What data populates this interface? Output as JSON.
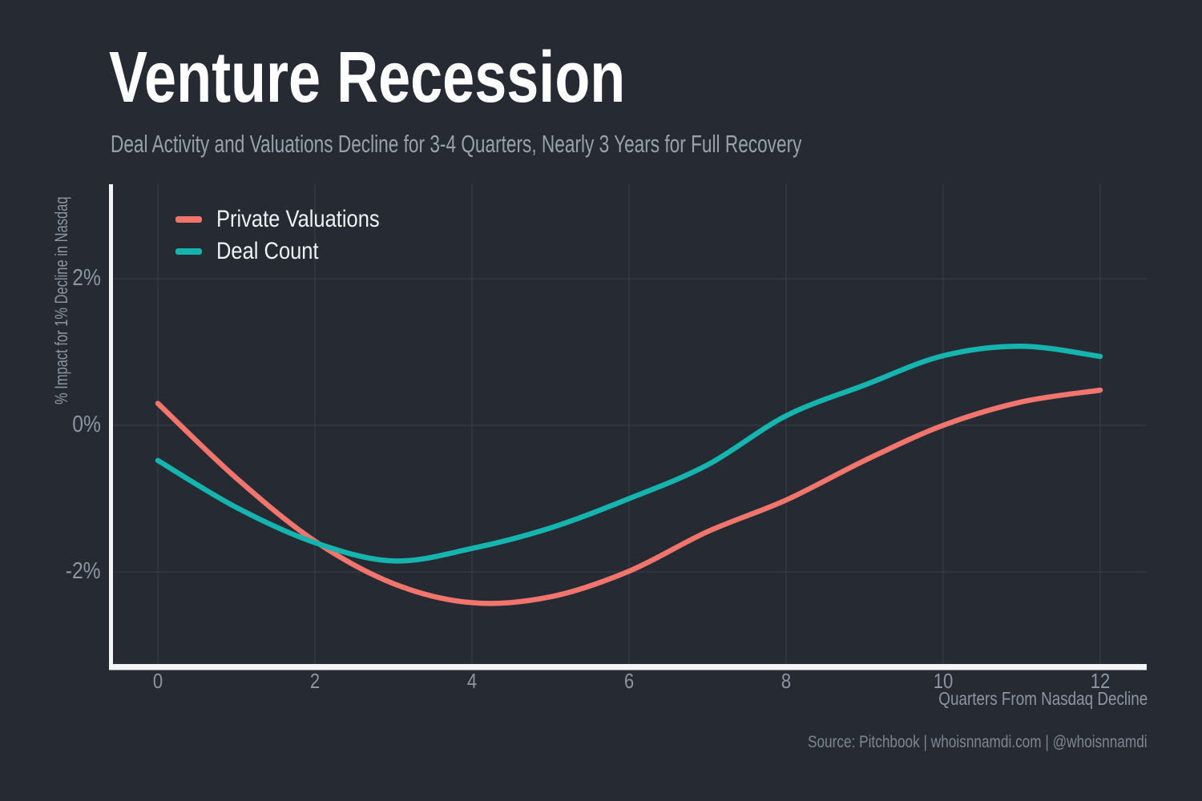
{
  "page": {
    "background": "#252A33"
  },
  "header": {
    "title": "Venture Recession",
    "subtitle": "Deal Activity and Valuations Decline for 3-4 Quarters, Nearly 3 Years for Full Recovery"
  },
  "chart_data": {
    "type": "line",
    "title": "Venture Recession",
    "subtitle": "Deal Activity and Valuations Decline for 3-4 Quarters, Nearly 3 Years for Full Recovery",
    "x": [
      0,
      1,
      2,
      3,
      4,
      5,
      6,
      7,
      8,
      9,
      10,
      11,
      12
    ],
    "series": [
      {
        "name": "Private Valuations",
        "color": "#F1756C",
        "values": [
          0.3,
          -0.72,
          -1.58,
          -2.16,
          -2.42,
          -2.34,
          -1.99,
          -1.45,
          -1.02,
          -0.48,
          0.0,
          0.32,
          0.48
        ]
      },
      {
        "name": "Deal Count",
        "color": "#15B4AE",
        "values": [
          -0.48,
          -1.12,
          -1.6,
          -1.85,
          -1.68,
          -1.4,
          -1.0,
          -0.54,
          0.13,
          0.55,
          0.95,
          1.08,
          0.94
        ]
      }
    ],
    "xlabel": "Quarters From Nasdaq Decline",
    "ylabel": "% Impact for 1% Decline in Nasdaq",
    "x_ticks": {
      "values": [
        0,
        2,
        4,
        6,
        8,
        10,
        12
      ],
      "labels": [
        "0",
        "2",
        "4",
        "6",
        "8",
        "10",
        "12"
      ]
    },
    "y_ticks": {
      "values": [
        2,
        0,
        -2
      ],
      "labels": [
        "2%",
        "0%",
        "-2%"
      ]
    },
    "xlim": [
      -0.62,
      12.6
    ],
    "ylim": [
      -3.3,
      3.3
    ],
    "grid": true,
    "legend_position": "top-left",
    "line_width": 6.5,
    "colors": {
      "background": "#252A33",
      "grid": "#39404A",
      "axis": "#F2F4F6",
      "tick_label": "#8D95A0",
      "subtitle": "#99A1AB",
      "source": "#7E8690",
      "legend_text": "#EFF2F4",
      "title_text": "#FFFFFF"
    }
  },
  "footer": {
    "source": "Source: Pitchbook | whoisnnamdi.com | @whoisnnamdi"
  }
}
